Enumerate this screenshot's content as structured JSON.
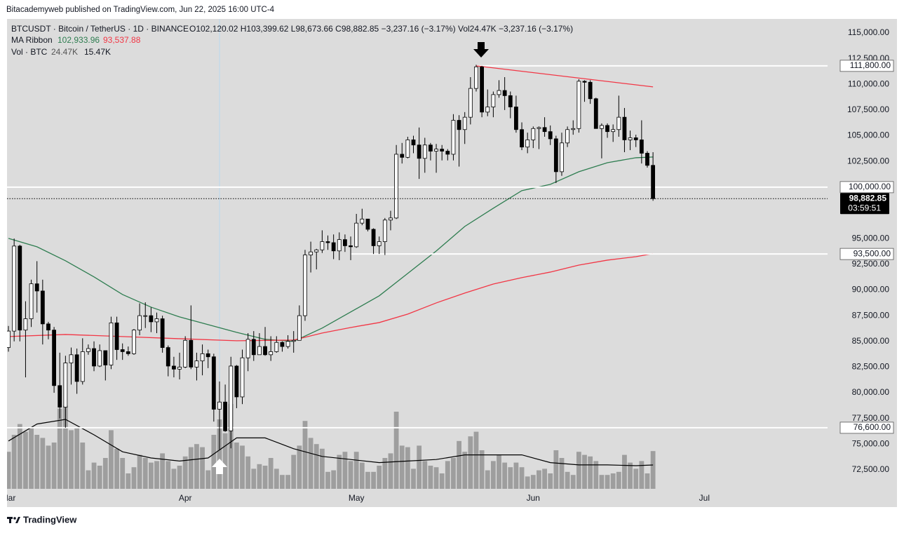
{
  "header": {
    "published": "Bitacademyweb published on TradingView.com, Jun 22, 2025 16:00 UTC-4"
  },
  "footer": {
    "brand": "TradingView"
  },
  "chart_data": {
    "type": "candlestick",
    "legend": {
      "symbol": "BTCUSDT · Bitcoin / TetherUS · 1D · BINANCE",
      "ohlc": "O102,120.02  H103,399.62  L98,673.66  C98,882.85  −3,237.16 (−3.17%)  Vol24.47K  −3,237.16 (−3.17%)",
      "ma_name": "MA Ribbon",
      "ma_values": [
        "102,933.96",
        "93,537.88"
      ],
      "vol_name": "Vol · BTC",
      "vol_values": [
        "24.47K",
        "15.47K"
      ]
    },
    "up_color": "#ffffff",
    "down_color": "#000000",
    "volume_color": "#9e9e9e",
    "xlim": [
      -0.25,
      143.6
    ],
    "ylim": [
      70660,
      116360
    ],
    "xticks": [
      {
        "value": 0,
        "label": "Mar"
      },
      {
        "value": 31,
        "label": "Apr"
      },
      {
        "value": 61,
        "label": "May"
      },
      {
        "value": 92,
        "label": "Jun"
      },
      {
        "value": 122,
        "label": "Jul"
      }
    ],
    "yticks": [
      {
        "value": 72500,
        "label": "72,500.00"
      },
      {
        "value": 75000,
        "label": "75,000.00"
      },
      {
        "value": 77500,
        "label": "77,500.00"
      },
      {
        "value": 80000,
        "label": "80,000.00"
      },
      {
        "value": 82500,
        "label": "82,500.00"
      },
      {
        "value": 85000,
        "label": "85,000.00"
      },
      {
        "value": 87500,
        "label": "87,500.00"
      },
      {
        "value": 90000,
        "label": "90,000.00"
      },
      {
        "value": 92500,
        "label": "92,500.00"
      },
      {
        "value": 95000,
        "label": "95,000.00"
      },
      {
        "value": 102500,
        "label": "102,500.00"
      },
      {
        "value": 105000,
        "label": "105,000.00"
      },
      {
        "value": 107500,
        "label": "107,500.00"
      },
      {
        "value": 110000,
        "label": "110,000.00"
      },
      {
        "value": 112500,
        "label": "112,500.00"
      },
      {
        "value": 115000,
        "label": "115,000.00"
      }
    ],
    "open": [
      84400,
      86000,
      94270,
      86100,
      87200,
      90600,
      89900,
      86700,
      86100,
      80700,
      78600,
      82900,
      83700,
      81100,
      84000,
      84300,
      82600,
      84100,
      82700,
      86800,
      84200,
      84000,
      83800,
      86100,
      87500,
      87500,
      86900,
      87200,
      84400,
      82600,
      82300,
      82500,
      85100,
      82500,
      83100,
      83800,
      83500,
      78400,
      79100,
      76300,
      82600,
      79600,
      83400,
      85200,
      83700,
      84500,
      83700,
      84000,
      84900,
      84500,
      85000,
      85100,
      87500,
      93400,
      93700,
      93900,
      94700,
      94600,
      93800,
      94900,
      94300,
      94200,
      96500,
      96900,
      95900,
      94300,
      94700,
      96800,
      97000,
      103200,
      102900,
      104600,
      104100,
      102800,
      104100,
      103500,
      103700,
      103500,
      103200,
      106500,
      105600,
      106800,
      109600,
      111700,
      107300,
      107800,
      109000,
      109400,
      108900,
      107800,
      105600,
      103900,
      104600,
      105700,
      105800,
      105400,
      104700,
      101500,
      104300,
      105600,
      105700,
      110300,
      110200,
      108600,
      105700,
      106000,
      105400,
      105600,
      106800,
      104600,
      104800,
      104600,
      103300,
      102120.02
    ],
    "high": [
      86500,
      95000,
      94400,
      88900,
      91000,
      92800,
      91000,
      86900,
      86400,
      83900,
      83600,
      84400,
      84300,
      85300,
      84700,
      85000,
      84700,
      84000,
      87400,
      87400,
      84800,
      84500,
      86200,
      88700,
      88800,
      88300,
      87800,
      87500,
      84600,
      83500,
      83900,
      85500,
      88500,
      83900,
      84700,
      84200,
      83800,
      81100,
      80800,
      83500,
      82700,
      84200,
      85800,
      86000,
      85800,
      86400,
      85500,
      85500,
      85000,
      85600,
      86000,
      88500,
      93900,
      94700,
      94000,
      95800,
      95300,
      95400,
      95600,
      95400,
      95200,
      97400,
      97900,
      96900,
      96000,
      95200,
      97000,
      97700,
      104100,
      104300,
      104900,
      105000,
      105800,
      104800,
      104300,
      104200,
      104100,
      103700,
      107100,
      107000,
      107300,
      110700,
      111900,
      111800,
      109500,
      109300,
      110400,
      110700,
      109300,
      108900,
      106300,
      105300,
      105900,
      105900,
      106800,
      106000,
      105000,
      105300,
      105900,
      106500,
      110500,
      110400,
      110400,
      108700,
      106200,
      106200,
      106100,
      108900,
      107700,
      105500,
      105100,
      106500,
      103500,
      103399.62
    ],
    "low": [
      84000,
      85000,
      85000,
      81500,
      86400,
      87800,
      84700,
      85200,
      80000,
      77500,
      76600,
      80800,
      79900,
      80800,
      83700,
      82100,
      82500,
      81200,
      82300,
      83200,
      83200,
      83600,
      83700,
      85600,
      86300,
      85900,
      85800,
      83900,
      81600,
      81500,
      81300,
      82400,
      82300,
      81200,
      81700,
      82400,
      77200,
      74500,
      76200,
      74600,
      78500,
      78900,
      82100,
      83100,
      83700,
      83600,
      83100,
      83900,
      84000,
      84300,
      83900,
      85100,
      87000,
      91700,
      92000,
      93600,
      93900,
      93000,
      92900,
      93700,
      92900,
      94100,
      96300,
      95700,
      93500,
      93500,
      93400,
      95800,
      96900,
      102300,
      102800,
      103300,
      100800,
      101400,
      102600,
      101400,
      102600,
      102600,
      102600,
      102000,
      104200,
      106100,
      109300,
      106800,
      106900,
      106800,
      108700,
      107500,
      106700,
      105300,
      103600,
      103300,
      103800,
      103700,
      104900,
      104100,
      100400,
      101100,
      103900,
      105100,
      105300,
      108300,
      108100,
      105700,
      102800,
      104800,
      104400,
      104900,
      103400,
      103600,
      103900,
      102300,
      101900,
      98673.66
    ],
    "close": [
      86000,
      94270,
      86100,
      87200,
      90600,
      89900,
      86700,
      86100,
      80700,
      78600,
      82900,
      83700,
      81100,
      84000,
      84300,
      82600,
      84100,
      82700,
      86800,
      84200,
      84000,
      83800,
      86100,
      87500,
      87500,
      86900,
      87200,
      84400,
      82600,
      82300,
      82500,
      85100,
      82500,
      83100,
      83800,
      83500,
      78400,
      79100,
      76300,
      82600,
      79600,
      83400,
      85200,
      83700,
      84500,
      83700,
      84000,
      84900,
      84500,
      85000,
      85100,
      87500,
      93400,
      93700,
      93900,
      94700,
      94600,
      93800,
      94900,
      94300,
      94200,
      96500,
      96900,
      95900,
      94300,
      94700,
      96800,
      97000,
      103200,
      102900,
      104600,
      104100,
      102800,
      104100,
      103500,
      103700,
      103500,
      103200,
      106500,
      105600,
      106800,
      109600,
      111700,
      107300,
      107800,
      109000,
      109400,
      108900,
      107800,
      105600,
      103900,
      104600,
      105700,
      105800,
      105400,
      104700,
      101500,
      104300,
      105600,
      105700,
      110300,
      110200,
      108600,
      105700,
      106000,
      105400,
      105600,
      106800,
      104600,
      104800,
      104600,
      103300,
      102120.02,
      98882.85
    ],
    "volume": [
      24,
      35,
      42,
      37,
      40,
      35,
      33,
      28,
      30,
      52,
      54,
      38,
      40,
      30,
      12,
      17,
      15,
      20,
      38,
      26,
      20,
      10,
      14,
      22,
      20,
      17,
      18,
      23,
      18,
      13,
      15,
      21,
      27,
      29,
      27,
      12,
      35,
      45,
      36,
      55,
      30,
      28,
      21,
      13,
      16,
      15,
      20,
      13,
      9,
      9,
      22,
      28,
      44,
      33,
      29,
      26,
      11,
      12,
      22,
      24,
      18,
      24,
      17,
      11,
      11,
      15,
      20,
      23,
      50,
      28,
      27,
      13,
      28,
      18,
      15,
      14,
      10,
      18,
      20,
      31,
      24,
      34,
      37,
      25,
      12,
      18,
      22,
      17,
      14,
      17,
      14,
      8,
      9,
      12,
      13,
      10,
      25,
      20,
      11,
      9,
      24,
      22,
      21,
      18,
      9,
      9,
      10,
      11,
      22,
      17,
      13,
      18,
      10,
      24.47
    ],
    "ma_series": [
      {
        "color": "#2e7d50",
        "x": [
          0,
          5,
          10,
          15,
          20,
          25,
          30,
          35,
          40,
          45,
          50,
          55,
          60,
          65,
          70,
          75,
          80,
          85,
          90,
          95,
          100,
          105,
          110,
          113
        ],
        "values": [
          95020,
          94200,
          92840,
          91270,
          89560,
          88330,
          87380,
          86630,
          85880,
          85200,
          85000,
          86290,
          87860,
          89430,
          91610,
          93790,
          96180,
          97950,
          99660,
          100270,
          101500,
          102380,
          102860,
          102933.96
        ]
      },
      {
        "color": "#f23645",
        "x": [
          0,
          10,
          20,
          30,
          40,
          50,
          55,
          60,
          65,
          70,
          75,
          80,
          85,
          90,
          95,
          100,
          105,
          110,
          113
        ],
        "values": [
          85470,
          85670,
          85470,
          85260,
          85060,
          85130,
          85810,
          86350,
          86830,
          87650,
          88740,
          89700,
          90580,
          91200,
          91740,
          92420,
          92900,
          93240,
          93537.88
        ]
      }
    ],
    "volume_ma": {
      "color": "#000000",
      "x": [
        0,
        5,
        10,
        15,
        20,
        25,
        30,
        35,
        40,
        45,
        50,
        55,
        60,
        65,
        70,
        75,
        80,
        85,
        90,
        95,
        100,
        105,
        110,
        113
      ],
      "values": [
        31,
        42,
        45,
        35,
        24,
        20,
        18,
        20,
        33,
        33,
        26,
        21,
        19,
        17,
        18,
        19,
        22,
        22,
        22,
        17,
        15.5,
        15.5,
        15,
        15.47
      ]
    },
    "levels": [
      {
        "value": 111800,
        "label": "111,800.00",
        "x0": 82
      },
      {
        "value": 100000,
        "label": "100,000.00"
      },
      {
        "value": 93500,
        "label": "93,500.00",
        "x0": 60
      },
      {
        "value": 76600,
        "label": "76,600.00"
      }
    ],
    "trendline": {
      "color": "#f23645",
      "x": [
        82,
        113
      ],
      "values": [
        111800,
        109750
      ]
    },
    "last_price": {
      "value": 98882.85,
      "label": "98,882.85",
      "countdown": "03:59:51"
    }
  }
}
